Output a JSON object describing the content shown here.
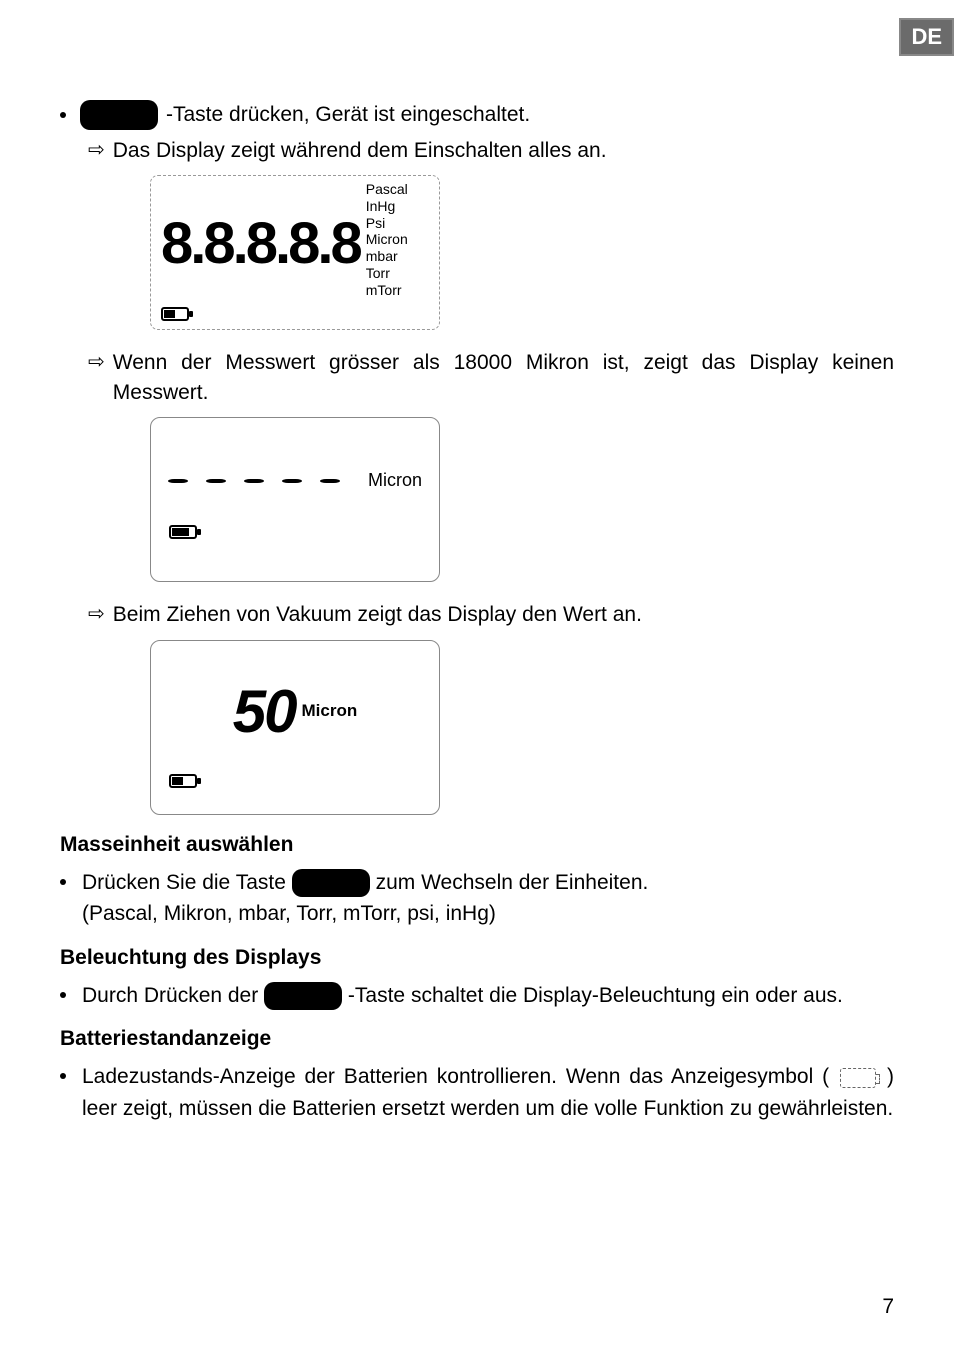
{
  "lang_badge": "DE",
  "line1": "-Taste drücken, Gerät ist eingeschaltet.",
  "arrow1": "Das Display zeigt während dem Einschalten alles an.",
  "lcd1": {
    "digits": "8.8.8.8.8",
    "units": [
      "Pascal",
      "InHg",
      "Psi",
      "Micron",
      "mbar",
      "Torr",
      "mTorr"
    ]
  },
  "arrow2": "Wenn der Messwert grösser als 18000 Mikron ist, zeigt das Display keinen Messwert.",
  "lcd2_unit": "Micron",
  "arrow3": "Beim Ziehen von Vakuum zeigt das Display den Wert an.",
  "lcd3_value": "50",
  "lcd3_unit": "Micron",
  "heading1": "Masseinheit auswählen",
  "unit_line_pre": "Drücken Sie die Taste",
  "unit_line_post": "zum Wechseln der Einheiten.",
  "unit_line2": "(Pascal, Mikron, mbar, Torr, mTorr, psi, inHg)",
  "heading2": "Beleuchtung des Displays",
  "backlight_pre": "Durch  Drücken  der",
  "backlight_post": "-Taste  schaltet  die  Display-Beleuchtung  ein oder aus.",
  "heading3": "Batteriestandanzeige",
  "battery_text_pre": "Ladezustands-Anzeige der Batterien kontrollieren. Wenn das Anzeigesymbol (",
  "battery_text_post": ") leer zeigt, müssen die Batterien ersetzt werden um die volle Funktion zu gewährleisten.",
  "page_number": "7"
}
